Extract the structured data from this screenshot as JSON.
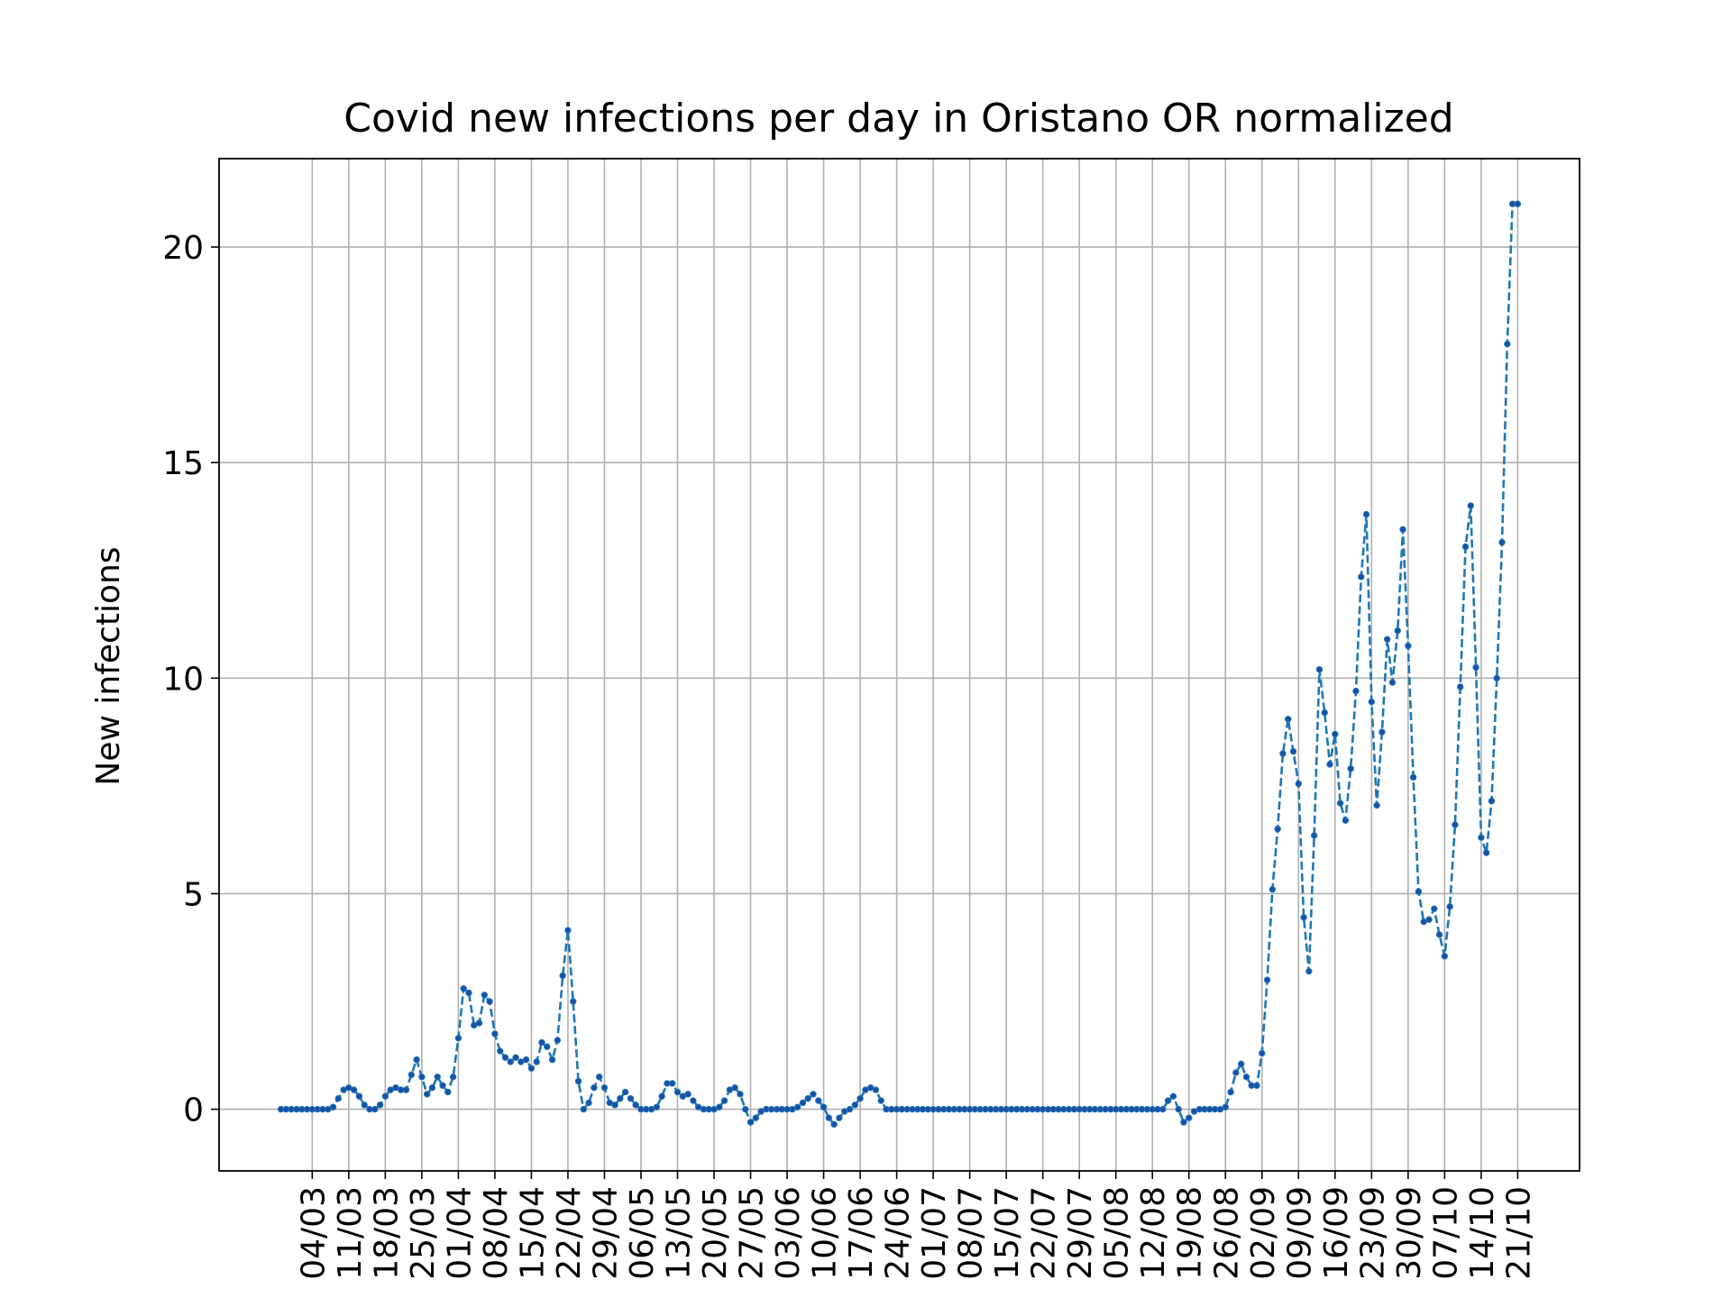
{
  "chart_data": {
    "type": "line",
    "title": "Covid new infections per day in Oristano OR normalized",
    "y_label": "New infections",
    "color": "#1f77b4",
    "marker_color": "#1a4fa8",
    "line_style": "dashed",
    "grid": true,
    "ylim": [
      -1.43,
      22.05
    ],
    "yticks": [
      0,
      5,
      10,
      15,
      20
    ],
    "x": [
      "27/02",
      "28/02",
      "29/02",
      "01/03",
      "02/03",
      "03/03",
      "04/03",
      "05/03",
      "06/03",
      "07/03",
      "08/03",
      "09/03",
      "10/03",
      "11/03",
      "12/03",
      "13/03",
      "14/03",
      "15/03",
      "16/03",
      "17/03",
      "18/03",
      "19/03",
      "20/03",
      "21/03",
      "22/03",
      "23/03",
      "24/03",
      "25/03",
      "26/03",
      "27/03",
      "28/03",
      "29/03",
      "30/03",
      "31/03",
      "01/04",
      "02/04",
      "03/04",
      "04/04",
      "05/04",
      "06/04",
      "07/04",
      "08/04",
      "09/04",
      "10/04",
      "11/04",
      "12/04",
      "13/04",
      "14/04",
      "15/04",
      "16/04",
      "17/04",
      "18/04",
      "19/04",
      "20/04",
      "21/04",
      "22/04",
      "23/04",
      "24/04",
      "25/04",
      "26/04",
      "27/04",
      "28/04",
      "29/04",
      "30/04",
      "01/05",
      "02/05",
      "03/05",
      "04/05",
      "05/05",
      "06/05",
      "07/05",
      "08/05",
      "09/05",
      "10/05",
      "11/05",
      "12/05",
      "13/05",
      "14/05",
      "15/05",
      "16/05",
      "17/05",
      "18/05",
      "19/05",
      "20/05",
      "21/05",
      "22/05",
      "23/05",
      "24/05",
      "25/05",
      "26/05",
      "27/05",
      "28/05",
      "29/05",
      "30/05",
      "31/05",
      "01/06",
      "02/06",
      "03/06",
      "04/06",
      "05/06",
      "06/06",
      "07/06",
      "08/06",
      "09/06",
      "10/06",
      "11/06",
      "12/06",
      "13/06",
      "14/06",
      "15/06",
      "16/06",
      "17/06",
      "18/06",
      "19/06",
      "20/06",
      "21/06",
      "22/06",
      "23/06",
      "24/06",
      "25/06",
      "26/06",
      "27/06",
      "28/06",
      "29/06",
      "30/06",
      "01/07",
      "02/07",
      "03/07",
      "04/07",
      "05/07",
      "06/07",
      "07/07",
      "08/07",
      "09/07",
      "10/07",
      "11/07",
      "12/07",
      "13/07",
      "14/07",
      "15/07",
      "16/07",
      "17/07",
      "18/07",
      "19/07",
      "20/07",
      "21/07",
      "22/07",
      "23/07",
      "24/07",
      "25/07",
      "26/07",
      "27/07",
      "28/07",
      "29/07",
      "30/07",
      "31/07",
      "01/08",
      "02/08",
      "03/08",
      "04/08",
      "05/08",
      "06/08",
      "07/08",
      "08/08",
      "09/08",
      "10/08",
      "11/08",
      "12/08",
      "13/08",
      "14/08",
      "15/08",
      "16/08",
      "17/08",
      "18/08",
      "19/08",
      "20/08",
      "21/08",
      "22/08",
      "23/08",
      "24/08",
      "25/08",
      "26/08",
      "27/08",
      "28/08",
      "29/08",
      "30/08",
      "31/08",
      "01/09",
      "02/09",
      "03/09",
      "04/09",
      "05/09",
      "06/09",
      "07/09",
      "08/09",
      "09/09",
      "10/09",
      "11/09",
      "12/09",
      "13/09",
      "14/09",
      "15/09",
      "16/09",
      "17/09",
      "18/09",
      "19/09",
      "20/09",
      "21/09",
      "22/09",
      "23/09",
      "24/09",
      "25/09",
      "26/09",
      "27/09",
      "28/09",
      "29/09",
      "30/09",
      "01/10",
      "02/10",
      "03/10",
      "04/10",
      "05/10",
      "06/10",
      "07/10",
      "08/10",
      "09/10",
      "10/10",
      "11/10",
      "12/10",
      "13/10",
      "14/10",
      "15/10",
      "16/10",
      "17/10",
      "18/10",
      "19/10",
      "20/10",
      "21/10"
    ],
    "values": [
      0,
      0,
      0,
      0,
      0,
      0,
      0,
      0,
      0,
      0,
      0.05,
      0.25,
      0.45,
      0.5,
      0.45,
      0.3,
      0.1,
      0,
      0,
      0.1,
      0.3,
      0.45,
      0.5,
      0.45,
      0.45,
      0.8,
      1.15,
      0.75,
      0.35,
      0.5,
      0.75,
      0.55,
      0.4,
      0.75,
      1.65,
      2.8,
      2.7,
      1.95,
      2.0,
      2.65,
      2.5,
      1.75,
      1.35,
      1.2,
      1.1,
      1.2,
      1.1,
      1.15,
      0.95,
      1.1,
      1.55,
      1.45,
      1.15,
      1.6,
      3.1,
      4.15,
      2.5,
      0.65,
      0.0,
      0.15,
      0.5,
      0.75,
      0.5,
      0.15,
      0.1,
      0.25,
      0.4,
      0.25,
      0.1,
      0,
      0,
      0,
      0.05,
      0.3,
      0.6,
      0.6,
      0.4,
      0.3,
      0.35,
      0.2,
      0.05,
      0,
      0,
      0,
      0.05,
      0.2,
      0.45,
      0.5,
      0.35,
      0,
      -0.3,
      -0.2,
      -0.05,
      0,
      0,
      0,
      0,
      0,
      0,
      0.05,
      0.15,
      0.25,
      0.35,
      0.2,
      0.05,
      -0.2,
      -0.35,
      -0.2,
      -0.05,
      0,
      0.1,
      0.25,
      0.45,
      0.5,
      0.45,
      0.2,
      0,
      0,
      0,
      0,
      0,
      0,
      0,
      0,
      0,
      0,
      0,
      0,
      0,
      0,
      0,
      0,
      0,
      0,
      0,
      0,
      0,
      0,
      0,
      0,
      0,
      0,
      0,
      0,
      0,
      0,
      0,
      0,
      0,
      0,
      0,
      0,
      0,
      0,
      0,
      0,
      0,
      0,
      0,
      0,
      0,
      0,
      0,
      0,
      0,
      0,
      0,
      0,
      0,
      0,
      0.2,
      0.3,
      0,
      -0.3,
      -0.2,
      -0.05,
      0,
      0,
      0,
      0,
      0,
      0.05,
      0.4,
      0.85,
      1.05,
      0.75,
      0.55,
      0.55,
      1.3,
      3.0,
      5.1,
      6.5,
      8.25,
      9.05,
      8.3,
      7.55,
      4.45,
      3.2,
      6.35,
      10.2,
      9.2,
      8.0,
      8.7,
      7.1,
      6.7,
      7.9,
      9.7,
      12.35,
      13.8,
      9.45,
      7.05,
      8.75,
      10.9,
      9.9,
      11.1,
      13.45,
      10.75,
      7.7,
      5.05,
      4.35,
      4.4,
      4.65,
      4.05,
      3.55,
      4.7,
      6.6,
      9.8,
      13.05,
      14.0,
      10.25,
      6.3,
      5.95,
      7.15,
      10.0,
      13.15,
      17.75,
      21.0,
      21.0
    ],
    "xticks": [
      "04/03",
      "11/03",
      "18/03",
      "25/03",
      "01/04",
      "08/04",
      "15/04",
      "22/04",
      "29/04",
      "06/05",
      "13/05",
      "20/05",
      "27/05",
      "03/06",
      "10/06",
      "17/06",
      "24/06",
      "01/07",
      "08/07",
      "15/07",
      "22/07",
      "29/07",
      "05/08",
      "12/08",
      "19/08",
      "26/08",
      "02/09",
      "09/09",
      "16/09",
      "23/09",
      "30/09",
      "07/10",
      "14/10",
      "21/10"
    ]
  }
}
